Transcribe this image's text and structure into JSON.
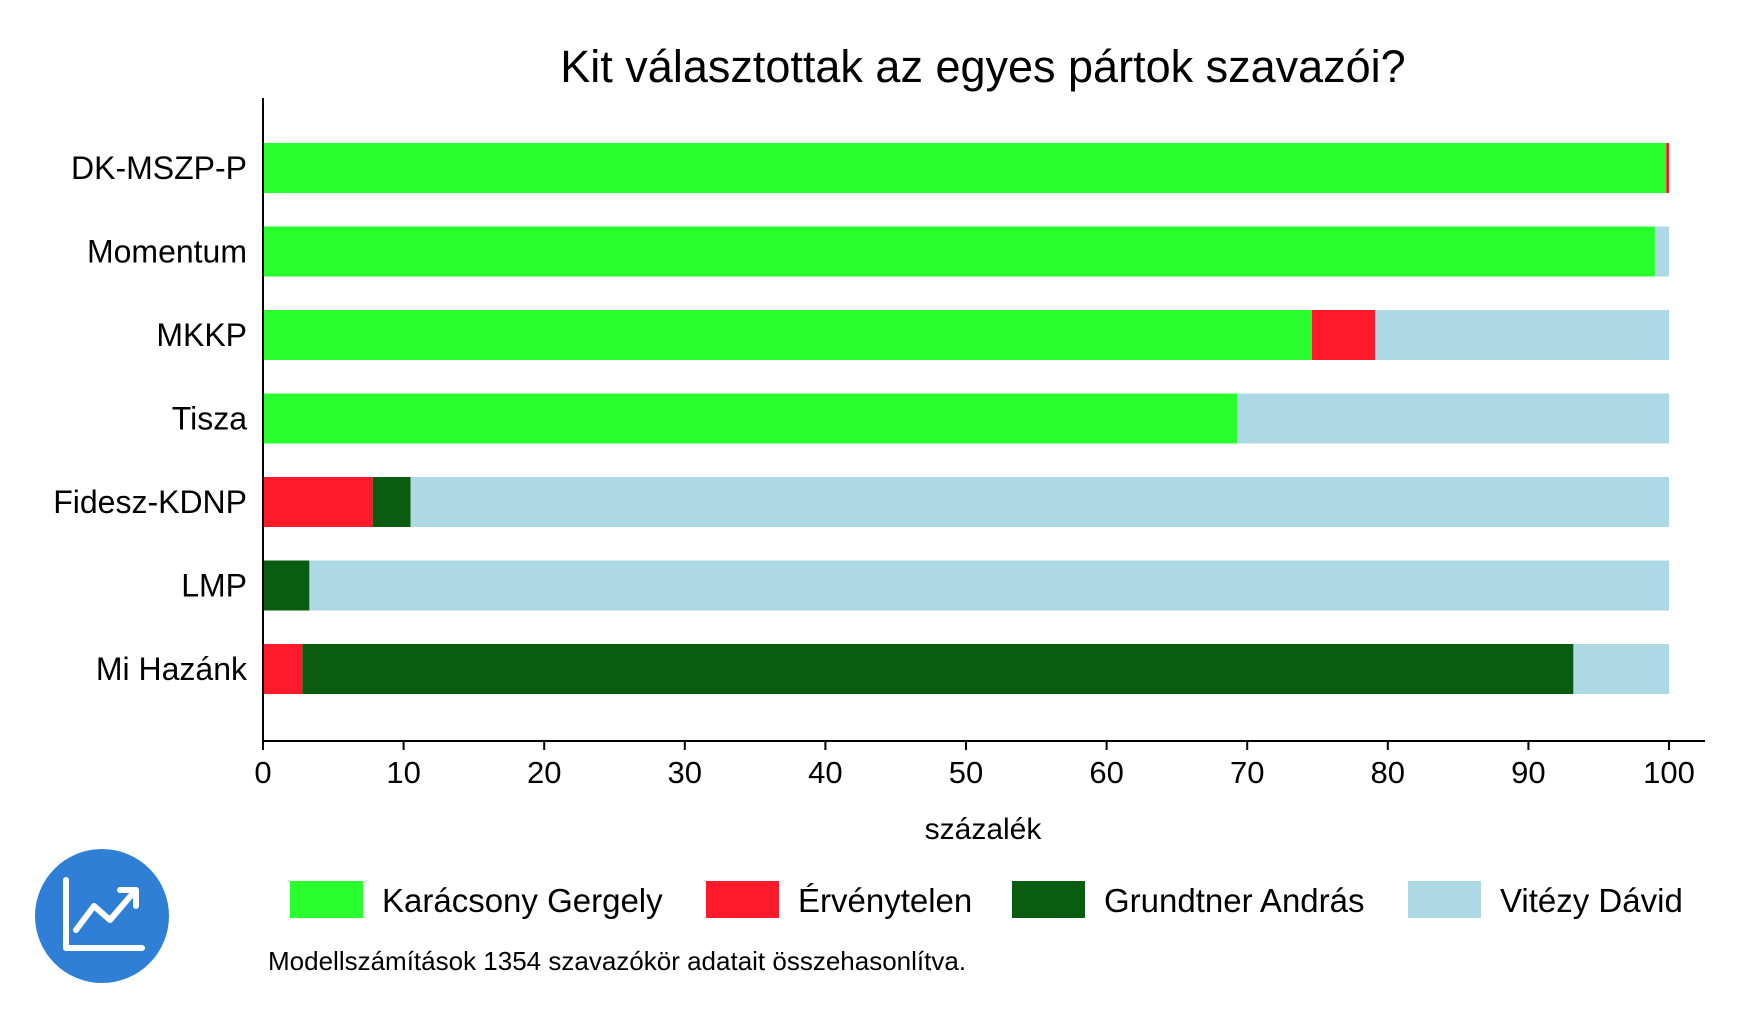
{
  "chart_data": {
    "type": "bar",
    "orientation": "horizontal",
    "stacked": true,
    "title": "Kit választottak az egyes pártok szavazói?",
    "xlabel": "százalék",
    "ylabel": "",
    "xlim": [
      0,
      100
    ],
    "xticks": [
      0,
      10,
      20,
      30,
      40,
      50,
      60,
      70,
      80,
      90,
      100
    ],
    "grid": false,
    "legend_position": "bottom",
    "categories": [
      "DK-MSZP-P",
      "Momentum",
      "MKKP",
      "Tisza",
      "Fidesz-KDNP",
      "LMP",
      "Mi Hazánk"
    ],
    "series": [
      {
        "name": "Karácsony Gergely",
        "color": "#2aff2e",
        "values": [
          99.8,
          99.0,
          74.6,
          69.3,
          0,
          0,
          0
        ]
      },
      {
        "name": "Érvénytelen",
        "color": "#ff1a2b",
        "values": [
          0.2,
          0,
          4.5,
          0,
          7.8,
          0,
          2.8
        ]
      },
      {
        "name": "Grundtner András",
        "color": "#0a5c10",
        "values": [
          0,
          0,
          0,
          0,
          2.7,
          3.3,
          90.4
        ]
      },
      {
        "name": "Vitézy Dávid",
        "color": "#add8e6",
        "values": [
          0,
          1.0,
          20.9,
          30.7,
          89.5,
          96.7,
          6.8
        ]
      }
    ]
  },
  "footnote": "Modellszámítások 1354 szavazókör adatait összehasonlítva.",
  "logo": {
    "icon": "trend-chart-icon",
    "color": "#2f7fd6"
  }
}
